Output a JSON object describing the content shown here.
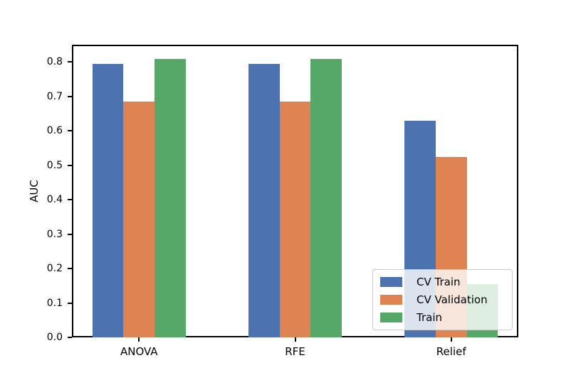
{
  "chart_data": {
    "type": "bar",
    "title": "",
    "categories": [
      "ANOVA",
      "RFE",
      "Relief"
    ],
    "series": [
      {
        "name": "CV Train",
        "color": "#4C72B0",
        "values": [
          0.795,
          0.795,
          0.63
        ]
      },
      {
        "name": "CV Validation",
        "color": "#DD8452",
        "values": [
          0.685,
          0.685,
          0.525
        ]
      },
      {
        "name": "Train",
        "color": "#55A868",
        "values": [
          0.81,
          0.81,
          0.155
        ]
      }
    ],
    "xlabel": "",
    "ylabel": "AUC",
    "yticks": [
      "0.0",
      "0.1",
      "0.2",
      "0.3",
      "0.4",
      "0.5",
      "0.6",
      "0.7",
      "0.8"
    ],
    "ylim": [
      0,
      0.8505
    ],
    "grid": false,
    "legend": {
      "position": "lower right",
      "entries": [
        "CV Train",
        "CV Validation",
        "Train"
      ]
    },
    "axis_color": "#000000",
    "tick_label_color": "#000000",
    "legend_border_color": "#cccccc"
  }
}
